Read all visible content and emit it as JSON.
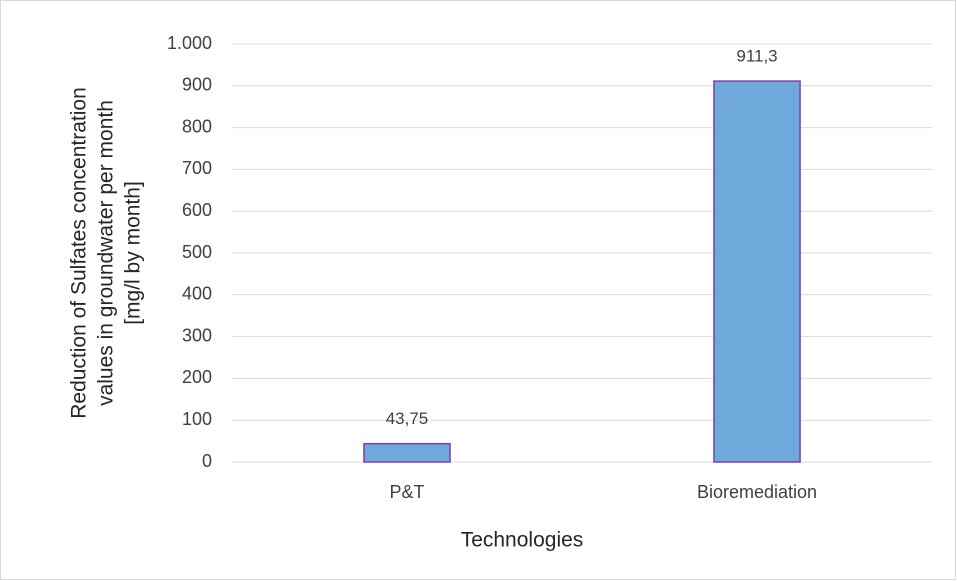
{
  "chart_data": {
    "type": "bar",
    "categories": [
      "P&T",
      "Bioremediation"
    ],
    "values": [
      43.75,
      911.3
    ],
    "value_labels": [
      "43,75",
      "911,3"
    ],
    "color": "#6fa9dc",
    "edge_color": "#7b3fa8",
    "xlabel": "Technologies",
    "ylabel": [
      "Reduction of Sulfates concentration",
      "values in groundwater per month",
      "[mg/l by month]"
    ],
    "ylim": [
      0,
      1000
    ],
    "yticks": [
      0,
      100,
      200,
      300,
      400,
      500,
      600,
      700,
      800,
      900,
      {
        "value": 1000,
        "label": "1.000"
      }
    ],
    "grid": true
  }
}
